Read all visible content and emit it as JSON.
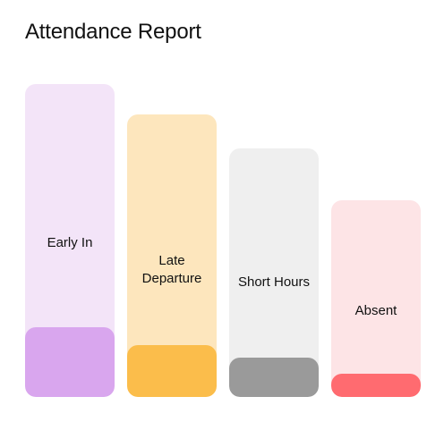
{
  "title": "Attendance Report",
  "columns": [
    {
      "label": "Early In",
      "track_color": "#f3e4f8",
      "fill_color": "#d9a6ee"
    },
    {
      "label": "Late\nDeparture",
      "track_color": "#fde6bd",
      "fill_color": "#fbbd4b"
    },
    {
      "label": "Short Hours",
      "track_color": "#efefef",
      "fill_color": "#9a9a9a"
    },
    {
      "label": "Absent",
      "track_color": "#fde4e6",
      "fill_color": "#ff6b70"
    }
  ]
}
